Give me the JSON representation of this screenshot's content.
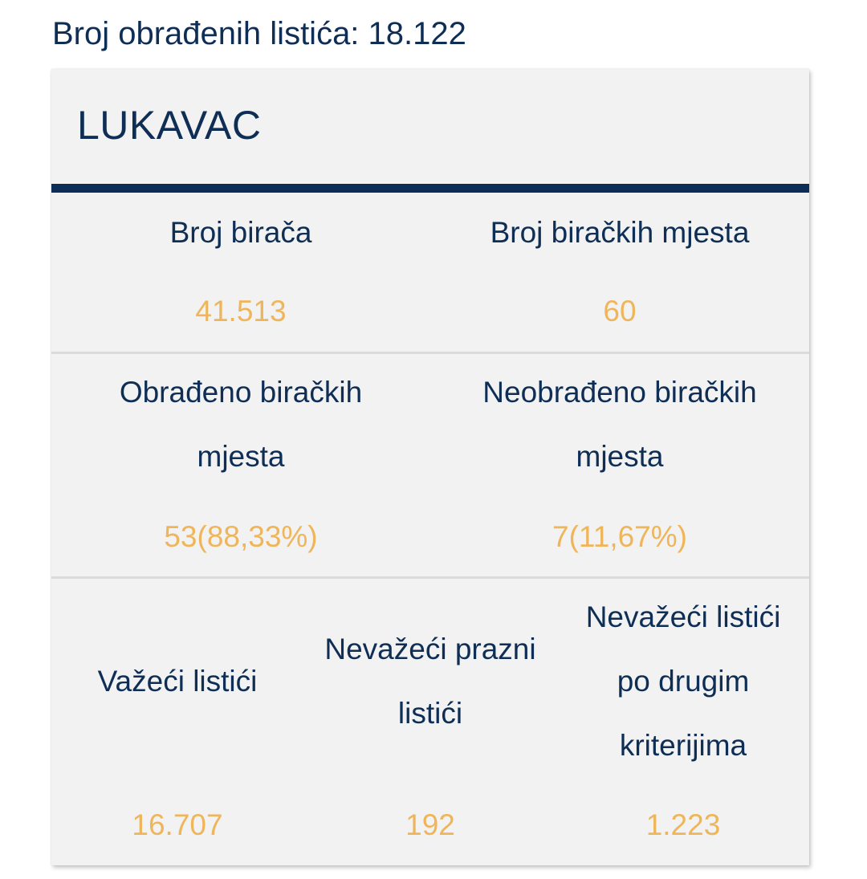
{
  "summary": {
    "processed_ballots_text": "Broj obrađenih listića: 18.122"
  },
  "municipality": {
    "name": "LUKAVAC"
  },
  "stats": {
    "row1": [
      {
        "label": "Broj birača",
        "value": "41.513"
      },
      {
        "label": "Broj biračkih mjesta",
        "value": "60"
      }
    ],
    "row2": [
      {
        "label_line1": "Obrađeno biračkih",
        "label_line2": "mjesta",
        "value": "53(88,33%)"
      },
      {
        "label_line1": "Neobrađeno biračkih",
        "label_line2": "mjesta",
        "value": "7(11,67%)"
      }
    ],
    "row3": [
      {
        "label_line1": "Važeći listići",
        "value": "16.707"
      },
      {
        "label_line1": "Nevažeći prazni",
        "label_line2": "listići",
        "value": "192"
      },
      {
        "label_line1": "Nevažeći listići",
        "label_line2": "po drugim",
        "label_line3": "kriterijima",
        "value": "1.223"
      }
    ]
  },
  "colors": {
    "label": "#0f2e55",
    "value": "#efb55a",
    "rule": "#0d2d57",
    "card_bg": "#f2f2f2"
  }
}
